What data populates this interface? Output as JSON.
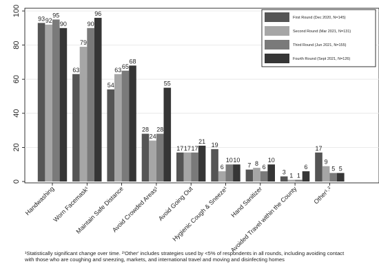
{
  "chart_data": {
    "type": "bar",
    "ylim": [
      0,
      100
    ],
    "yticks": [
      0,
      20,
      40,
      60,
      80,
      100
    ],
    "grid": true,
    "legend_position": "top-right",
    "categories": [
      "Handwashing",
      "Worn Facemask¹",
      "Maintain Safe Distance",
      "Avoid Crowded Areas¹",
      "Avoid Going Out",
      "Hygienic Cough & Sneeze¹",
      "Hand Sanitizer",
      "Avoided Travel within the County",
      "Other¹˒²"
    ],
    "series": [
      {
        "name": "First Round (Dec 2020, N=145)",
        "color": "#555555",
        "values": [
          93,
          63,
          54,
          28,
          17,
          19,
          7,
          3,
          17
        ]
      },
      {
        "name": "Second Round (Mar 2021, N=131)",
        "color": "#a6a6a6",
        "values": [
          92,
          79,
          63,
          24,
          17,
          6,
          8,
          1,
          9
        ]
      },
      {
        "name": "Third Round (Jun 2021, N=155)",
        "color": "#7a7a7a",
        "values": [
          95,
          90,
          65,
          28,
          17,
          10,
          6,
          1,
          5
        ]
      },
      {
        "name": "Fourth Round (Sept 2021, N=126)",
        "color": "#363636",
        "values": [
          90,
          96,
          68,
          55,
          21,
          10,
          10,
          6,
          5
        ]
      }
    ]
  },
  "footnote": {
    "line1": "¹Statistically significant change over time. ²'Other' includes strategies used by <5% of respondents in all rounds, including avoiding contact",
    "line2": "with those who are coughing and sneezing, markets, and international travel and moving and disinfecting homes"
  }
}
